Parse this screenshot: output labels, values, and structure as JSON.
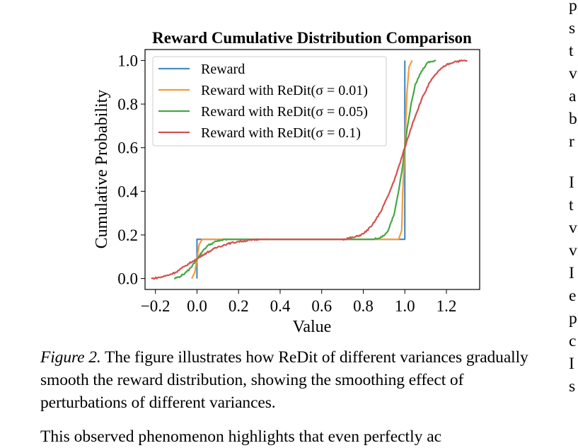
{
  "chart_data": {
    "type": "line",
    "title": "Reward Cumulative Distribution Comparison",
    "xlabel": "Value",
    "ylabel": "Cumulative Probability",
    "xlim": [
      -0.25,
      1.36
    ],
    "ylim": [
      -0.05,
      1.05
    ],
    "xticks": [
      -0.2,
      0.0,
      0.2,
      0.4,
      0.6,
      0.8,
      1.0,
      1.2
    ],
    "xtick_labels": [
      "−0.2",
      "0.0",
      "0.2",
      "0.4",
      "0.6",
      "0.8",
      "1.0",
      "1.2"
    ],
    "yticks": [
      0.0,
      0.2,
      0.4,
      0.6,
      0.8,
      1.0
    ],
    "ytick_labels": [
      "0.0",
      "0.2",
      "0.4",
      "0.6",
      "0.8",
      "1.0"
    ],
    "grid": false,
    "legend_position": "upper-left",
    "series": [
      {
        "name": "Reward",
        "color": "#4a8cc4",
        "x": [
          0.0,
          0.0,
          1.0,
          1.0
        ],
        "y": [
          0.0,
          0.18,
          0.18,
          1.0
        ]
      },
      {
        "name": "Reward with ReDit(σ = 0.01)",
        "color": "#f39c3c",
        "x": [
          -0.025,
          -0.01,
          0.0,
          0.01,
          0.025,
          0.97,
          0.985,
          0.99,
          1.0,
          1.01,
          1.02,
          1.035
        ],
        "y": [
          0.0,
          0.03,
          0.09,
          0.155,
          0.18,
          0.18,
          0.22,
          0.4,
          0.6,
          0.85,
          0.97,
          1.0
        ]
      },
      {
        "name": "Reward with ReDit(σ = 0.05)",
        "color": "#46a845",
        "x": [
          -0.11,
          -0.08,
          -0.05,
          -0.03,
          0.0,
          0.03,
          0.05,
          0.08,
          0.11,
          0.15,
          0.2,
          0.85,
          0.89,
          0.92,
          0.95,
          0.97,
          0.99,
          1.0,
          1.01,
          1.03,
          1.05,
          1.08,
          1.11,
          1.15
        ],
        "y": [
          0.0,
          0.01,
          0.03,
          0.05,
          0.09,
          0.13,
          0.15,
          0.165,
          0.175,
          0.18,
          0.18,
          0.18,
          0.19,
          0.22,
          0.3,
          0.4,
          0.52,
          0.6,
          0.68,
          0.8,
          0.89,
          0.95,
          0.99,
          1.0
        ],
        "style": "noisy"
      },
      {
        "name": "Reward with ReDit(σ = 0.1)",
        "color": "#d35151",
        "x": [
          -0.22,
          -0.18,
          -0.14,
          -0.1,
          -0.06,
          -0.02,
          0.0,
          0.03,
          0.07,
          0.1,
          0.15,
          0.2,
          0.3,
          0.7,
          0.76,
          0.8,
          0.84,
          0.88,
          0.92,
          0.96,
          1.0,
          1.04,
          1.08,
          1.12,
          1.16,
          1.2,
          1.24,
          1.3
        ],
        "y": [
          0.0,
          0.005,
          0.015,
          0.03,
          0.055,
          0.08,
          0.09,
          0.11,
          0.13,
          0.145,
          0.16,
          0.17,
          0.18,
          0.18,
          0.19,
          0.205,
          0.24,
          0.3,
          0.38,
          0.48,
          0.6,
          0.72,
          0.82,
          0.9,
          0.95,
          0.98,
          0.995,
          1.0
        ],
        "style": "noisy"
      }
    ]
  },
  "caption": {
    "label": "Figure 2.",
    "text": " The figure illustrates how ReDit of different variances gradually smooth the reward distribution, showing the smoothing effect of perturbations of different variances."
  },
  "body_text_cut": "This observed phenomenon highlights that even perfectly ac",
  "right_column_letters": [
    "p",
    "s",
    "t",
    "v",
    "a",
    "b",
    "r",
    "I",
    "t",
    "v",
    "v",
    "I",
    "e",
    "p",
    "c",
    "I",
    "s"
  ]
}
